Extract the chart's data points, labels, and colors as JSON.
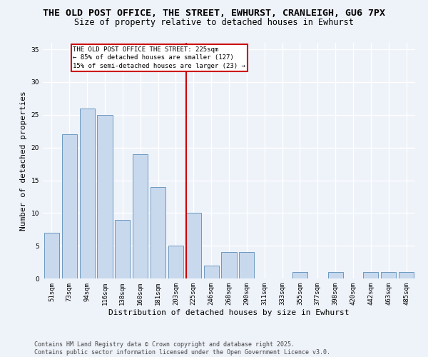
{
  "title1": "THE OLD POST OFFICE, THE STREET, EWHURST, CRANLEIGH, GU6 7PX",
  "title2": "Size of property relative to detached houses in Ewhurst",
  "xlabel": "Distribution of detached houses by size in Ewhurst",
  "ylabel": "Number of detached properties",
  "categories": [
    "51sqm",
    "73sqm",
    "94sqm",
    "116sqm",
    "138sqm",
    "160sqm",
    "181sqm",
    "203sqm",
    "225sqm",
    "246sqm",
    "268sqm",
    "290sqm",
    "311sqm",
    "333sqm",
    "355sqm",
    "377sqm",
    "398sqm",
    "420sqm",
    "442sqm",
    "463sqm",
    "485sqm"
  ],
  "values": [
    7,
    22,
    26,
    25,
    9,
    19,
    14,
    5,
    10,
    2,
    4,
    4,
    0,
    0,
    1,
    0,
    1,
    0,
    1,
    1,
    1
  ],
  "bar_color": "#c8d9ee",
  "bar_edge_color": "#5b8db8",
  "highlight_index": 8,
  "highlight_line_color": "#cc0000",
  "annotation_text": "THE OLD POST OFFICE THE STREET: 225sqm\n← 85% of detached houses are smaller (127)\n15% of semi-detached houses are larger (23) →",
  "annotation_box_color": "#ffffff",
  "annotation_box_edge": "#cc0000",
  "ylim": [
    0,
    36
  ],
  "yticks": [
    0,
    5,
    10,
    15,
    20,
    25,
    30,
    35
  ],
  "footer": "Contains HM Land Registry data © Crown copyright and database right 2025.\nContains public sector information licensed under the Open Government Licence v3.0.",
  "bg_color": "#eef2f9",
  "grid_color": "#ffffff",
  "title_fontsize": 9.5,
  "subtitle_fontsize": 8.5,
  "axis_label_fontsize": 8,
  "tick_fontsize": 6.5,
  "footer_fontsize": 6,
  "annotation_fontsize": 6.5
}
